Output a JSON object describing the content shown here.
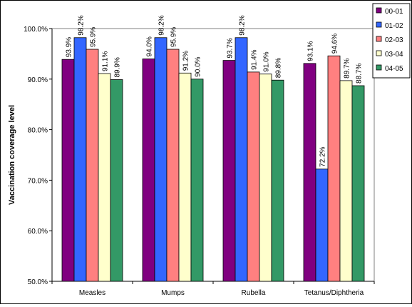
{
  "chart_data": {
    "type": "bar",
    "title": "",
    "xlabel": "",
    "ylabel": "Vaccination coverage level",
    "categories": [
      "Measles",
      "Mumps",
      "Rubella",
      "Tetanus/Diphtheria"
    ],
    "ylim": [
      50,
      100
    ],
    "yticks": [
      50,
      60,
      70,
      80,
      90,
      100
    ],
    "ytick_labels": [
      "50.0%",
      "60.0%",
      "70.0%",
      "80.0%",
      "90.0%",
      "100.0%"
    ],
    "grid": false,
    "legend_position": "top-right",
    "series": [
      {
        "name": "00-01",
        "color": "#800080",
        "values": [
          93.9,
          94.0,
          93.7,
          93.1
        ],
        "labels": [
          "93.9%",
          "94.0%",
          "93.7%",
          "93.1%"
        ]
      },
      {
        "name": "01-02",
        "color": "#3366FF",
        "values": [
          98.2,
          98.2,
          98.2,
          72.2
        ],
        "labels": [
          "98.2%",
          "98.2%",
          "98.2%",
          "72.2%"
        ]
      },
      {
        "name": "02-03",
        "color": "#FF8080",
        "values": [
          95.9,
          95.9,
          91.4,
          94.6
        ],
        "labels": [
          "95.9%",
          "95.9%",
          "91.4%",
          "94.6%"
        ]
      },
      {
        "name": "03-04",
        "color": "#FFFFCC",
        "values": [
          91.1,
          91.2,
          91.0,
          89.7
        ],
        "labels": [
          "91.1%",
          "91.2%",
          "91.0%",
          "89.7%"
        ]
      },
      {
        "name": "04-05",
        "color": "#339966",
        "values": [
          89.9,
          90.0,
          89.8,
          88.7
        ],
        "labels": [
          "89.9%",
          "90.0%",
          "89.8%",
          "88.7%"
        ]
      }
    ]
  }
}
